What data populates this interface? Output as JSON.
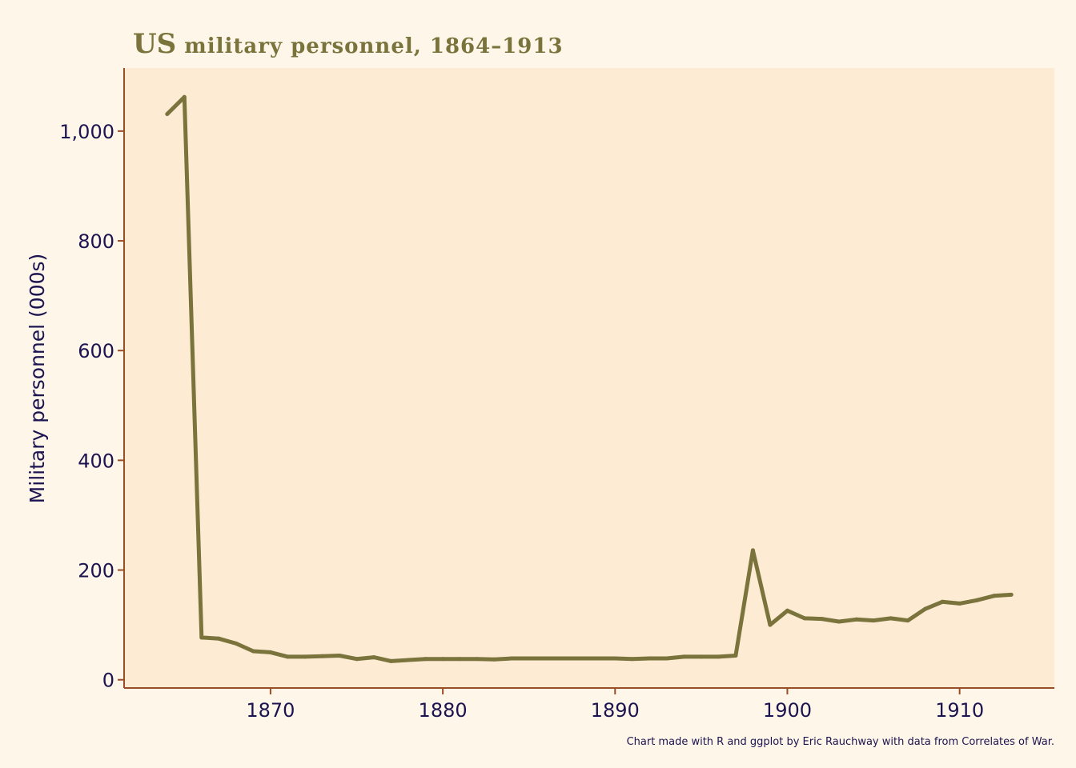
{
  "title_lead": "US",
  "title_rest": " military personnel, 1864–1913",
  "caption": "Chart made with R and ggplot by Eric Rauchway with data from Correlates of War.",
  "colors": {
    "background": "#fef7e9",
    "panel": "#fdebd4",
    "axis": "#9b4e25",
    "text": "#1c1450",
    "title": "#7a733c",
    "line": "#7a733c"
  },
  "chart_data": {
    "type": "line",
    "title": "US military personnel, 1864–1913",
    "xlabel": "",
    "ylabel": "Military personnel (000s)",
    "xlim": [
      1861.5,
      1915.5
    ],
    "ylim": [
      -15,
      1115
    ],
    "x_ticks": [
      1870,
      1880,
      1890,
      1900,
      1910
    ],
    "x_tick_labels": [
      "1870",
      "1880",
      "1890",
      "1900",
      "1910"
    ],
    "y_ticks": [
      0,
      200,
      400,
      600,
      800,
      1000
    ],
    "y_tick_labels": [
      "0",
      "200",
      "400",
      "600",
      "800",
      "1,000"
    ],
    "series": [
      {
        "name": "Military personnel (000s)",
        "x": [
          1864,
          1865,
          1866,
          1867,
          1868,
          1869,
          1870,
          1871,
          1872,
          1873,
          1874,
          1875,
          1876,
          1877,
          1878,
          1879,
          1880,
          1881,
          1882,
          1883,
          1884,
          1885,
          1886,
          1887,
          1888,
          1889,
          1890,
          1891,
          1892,
          1893,
          1894,
          1895,
          1896,
          1897,
          1898,
          1899,
          1900,
          1901,
          1902,
          1903,
          1904,
          1905,
          1906,
          1907,
          1908,
          1909,
          1910,
          1911,
          1912,
          1913
        ],
        "values": [
          1031,
          1062,
          77,
          75,
          66,
          52,
          50,
          42,
          42,
          43,
          44,
          38,
          41,
          34,
          36,
          38,
          38,
          38,
          38,
          37,
          39,
          39,
          39,
          39,
          39,
          39,
          39,
          38,
          39,
          39,
          42,
          42,
          42,
          44,
          236,
          100,
          126,
          112,
          111,
          106,
          110,
          108,
          112,
          108,
          129,
          142,
          139,
          145,
          153,
          155
        ]
      }
    ]
  }
}
